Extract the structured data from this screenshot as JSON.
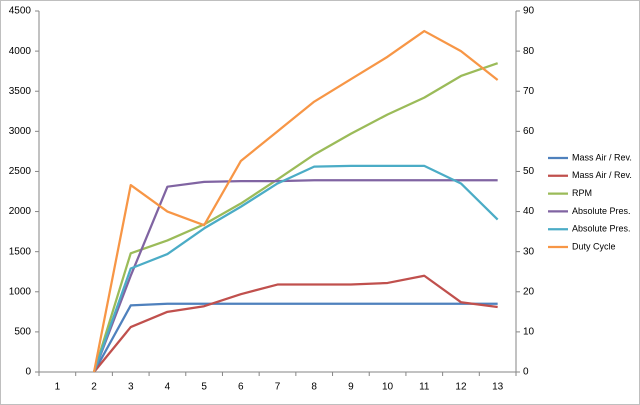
{
  "chart_data": {
    "type": "line",
    "categories": [
      1,
      2,
      3,
      4,
      5,
      6,
      7,
      8,
      9,
      10,
      11,
      12,
      13
    ],
    "ylim": [
      0,
      4500
    ],
    "yticks": [
      0,
      500,
      1000,
      1500,
      2000,
      2500,
      3000,
      3500,
      4000,
      4500
    ],
    "y2lim": [
      0,
      90
    ],
    "y2ticks": [
      0,
      10,
      20,
      30,
      40,
      50,
      60,
      70,
      80,
      90
    ],
    "grid": false,
    "legend": "right",
    "series": [
      {
        "name": "Mass Air / Rev.",
        "color": "#4f81bd",
        "axis": "y2",
        "values": [
          null,
          0,
          16.6,
          17,
          17,
          17,
          17,
          17,
          17,
          17,
          17,
          17,
          17
        ]
      },
      {
        "name": "Mass Air / Rev.",
        "color": "#c0504d",
        "axis": "y2",
        "values": [
          null,
          0,
          11.2,
          15,
          16.4,
          19.4,
          21.8,
          21.8,
          21.8,
          22.2,
          24,
          17.4,
          16.2
        ]
      },
      {
        "name": "RPM",
        "color": "#9bbb59",
        "axis": "y",
        "values": [
          null,
          0,
          1480,
          1640,
          1840,
          2100,
          2400,
          2710,
          2970,
          3210,
          3420,
          3690,
          3850
        ]
      },
      {
        "name": "Absolute Pres.",
        "color": "#8064a2",
        "axis": "y2",
        "values": [
          null,
          0,
          24,
          46.2,
          47.4,
          47.6,
          47.6,
          47.8,
          47.8,
          47.8,
          47.8,
          47.8,
          47.8
        ]
      },
      {
        "name": "Absolute Pres.",
        "color": "#4bacc6",
        "axis": "y2",
        "values": [
          null,
          0,
          25.8,
          29.4,
          35.8,
          41.2,
          47,
          51.2,
          51.4,
          51.4,
          51.4,
          47,
          38
        ]
      },
      {
        "name": "Duty Cycle",
        "color": "#f79646",
        "axis": "y2",
        "values": [
          null,
          0,
          46.6,
          40,
          36.6,
          52.6,
          60,
          67.4,
          73,
          78.6,
          85,
          80,
          72.8
        ]
      }
    ]
  }
}
